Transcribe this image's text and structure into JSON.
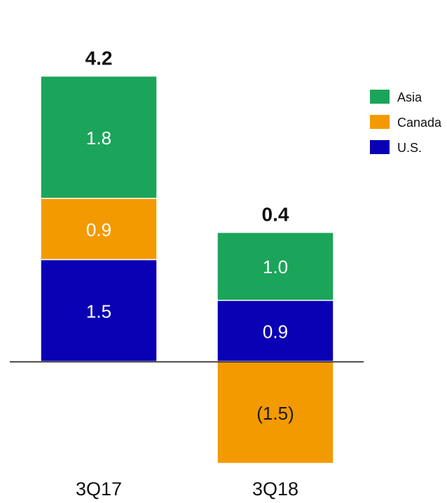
{
  "colors": {
    "Asia": "#1aa55a",
    "Canada": "#f39a00",
    "U.S.": "#0a00b4"
  },
  "chart_data": {
    "type": "bar",
    "stacked": true,
    "categories": [
      "3Q17",
      "3Q18"
    ],
    "series": [
      {
        "name": "U.S.",
        "values": [
          1.5,
          0.9
        ],
        "labels": [
          "1.5",
          "0.9"
        ]
      },
      {
        "name": "Canada",
        "values": [
          0.9,
          -1.5
        ],
        "labels": [
          "0.9",
          "(1.5)"
        ]
      },
      {
        "name": "Asia",
        "values": [
          1.8,
          1.0
        ],
        "labels": [
          "1.8",
          "1.0"
        ]
      }
    ],
    "totals": [
      "4.2",
      "0.4"
    ],
    "legend": {
      "placement": "top-right",
      "order": [
        "Asia",
        "Canada",
        "U.S."
      ]
    },
    "grid": false,
    "zero_line": true,
    "ylim": [
      -2.5,
      4.2
    ]
  }
}
